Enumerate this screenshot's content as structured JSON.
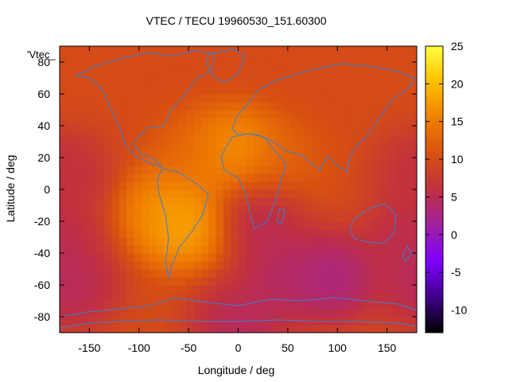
{
  "chart_data": {
    "type": "heatmap",
    "title": "VTEC / TECU 19960530_151.60300",
    "xlabel": "Longitude / deg",
    "ylabel": "Latitude / deg",
    "key_label": "'Vtec_",
    "xlim": [
      -180,
      180
    ],
    "ylim": [
      -90,
      90
    ],
    "x_ticks": [
      -150,
      -100,
      -50,
      0,
      50,
      100,
      150
    ],
    "y_ticks": [
      -80,
      -60,
      -40,
      -20,
      0,
      20,
      40,
      60,
      80
    ],
    "colorbar": {
      "range": [
        -13,
        25
      ],
      "ticks": [
        -10,
        -5,
        0,
        5,
        10,
        15,
        20,
        25
      ],
      "palette": [
        "#000000",
        "#40008c",
        "#7f00ff",
        "#a0209f",
        "#c03040",
        "#d85010",
        "#f08000",
        "#ffc000",
        "#ffff40"
      ]
    },
    "coastline_color": "#3a7fd0",
    "grid": false,
    "features": [
      {
        "lon": -40,
        "lat": 20,
        "value": 13
      },
      {
        "lon": -55,
        "lat": -20,
        "value": 21
      },
      {
        "lon": -70,
        "lat": -12,
        "value": 17
      },
      {
        "lon": -5,
        "lat": 22,
        "value": 20
      },
      {
        "lon": 40,
        "lat": 15,
        "value": 13
      },
      {
        "lon": 20,
        "lat": -15,
        "value": 3
      },
      {
        "lon": 95,
        "lat": -55,
        "value": 1
      },
      {
        "lon": 45,
        "lat": -55,
        "value": 3
      },
      {
        "lon": -170,
        "lat": -60,
        "value": 3
      },
      {
        "lon": 0,
        "lat": -85,
        "value": 3
      },
      {
        "lon": 175,
        "lat": -30,
        "value": 4
      },
      {
        "lon": -175,
        "lat": 10,
        "value": 5
      }
    ]
  }
}
